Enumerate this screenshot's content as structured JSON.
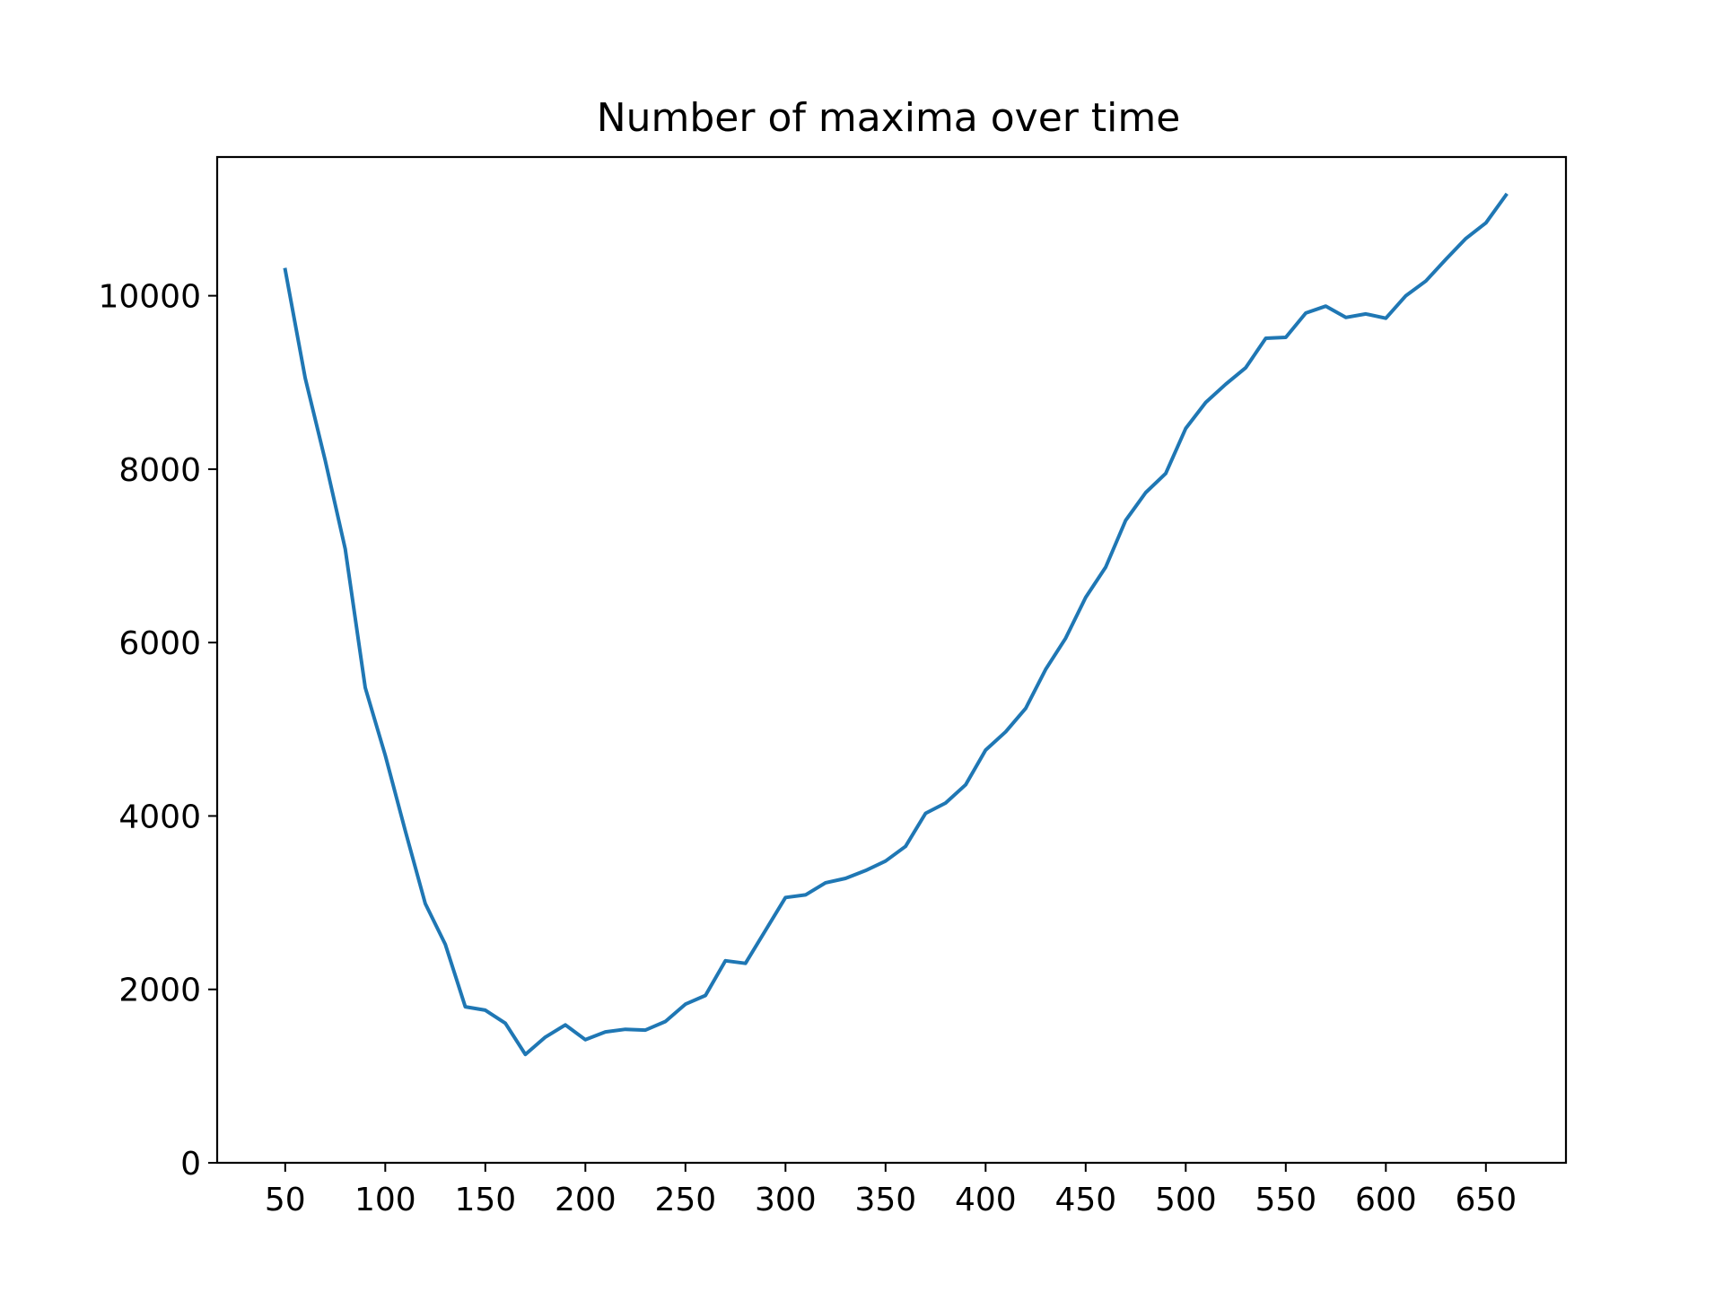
{
  "chart_data": {
    "type": "line",
    "title": "Number of maxima over time",
    "xlabel": "",
    "ylabel": "",
    "xlim": [
      16,
      690
    ],
    "ylim": [
      0,
      11600
    ],
    "x_ticks": [
      50,
      100,
      150,
      200,
      250,
      300,
      350,
      400,
      450,
      500,
      550,
      600,
      650
    ],
    "y_ticks": [
      0,
      2000,
      4000,
      6000,
      8000,
      10000
    ],
    "grid": false,
    "legend": "none",
    "series": [
      {
        "color": "#1f77b4",
        "x": [
          50,
          60,
          70,
          80,
          90,
          100,
          110,
          120,
          130,
          140,
          150,
          160,
          170,
          180,
          190,
          200,
          210,
          220,
          230,
          240,
          250,
          260,
          270,
          280,
          290,
          300,
          310,
          320,
          330,
          340,
          350,
          360,
          370,
          380,
          390,
          400,
          410,
          420,
          430,
          440,
          450,
          460,
          470,
          480,
          490,
          500,
          510,
          520,
          530,
          540,
          550,
          560,
          570,
          580,
          590,
          600,
          610,
          620,
          630,
          640,
          650,
          660
        ],
        "y": [
          10300,
          9050,
          8100,
          7080,
          5480,
          4700,
          3830,
          2990,
          2520,
          1800,
          1760,
          1610,
          1250,
          1450,
          1590,
          1420,
          1510,
          1540,
          1530,
          1630,
          1830,
          1930,
          2330,
          2300,
          2680,
          3060,
          3090,
          3230,
          3280,
          3370,
          3480,
          3650,
          4030,
          4150,
          4360,
          4760,
          4970,
          5240,
          5690,
          6050,
          6520,
          6870,
          7410,
          7730,
          7950,
          8470,
          8770,
          8980,
          9170,
          9510,
          9520,
          9800,
          9880,
          9750,
          9790,
          9740,
          10000,
          10170,
          10420,
          10660,
          10840,
          11160
        ]
      }
    ]
  }
}
